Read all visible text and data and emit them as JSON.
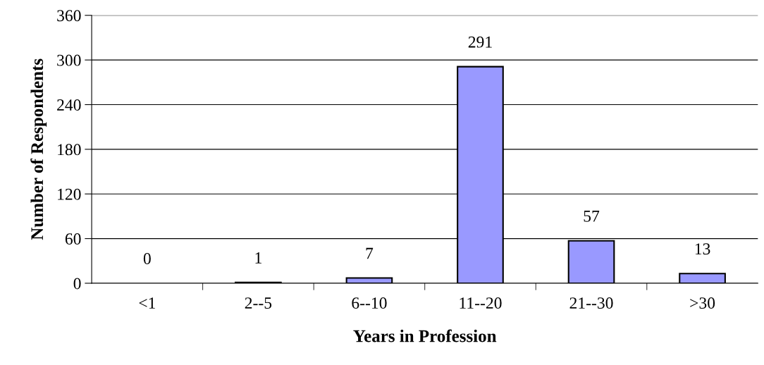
{
  "chart_data": {
    "type": "bar",
    "xlabel": "Years in Profession",
    "ylabel": "Number of Respondents",
    "categories": [
      "<1",
      "2--5",
      "6--10",
      "11--20",
      "21--30",
      ">30"
    ],
    "values": [
      0,
      1,
      7,
      291,
      57,
      13
    ],
    "color": "#9999ff",
    "ylim": [
      0,
      360
    ],
    "yticks": [
      0,
      60,
      120,
      180,
      240,
      300,
      360
    ],
    "grid": "y",
    "data_labels": true,
    "legend": false
  }
}
